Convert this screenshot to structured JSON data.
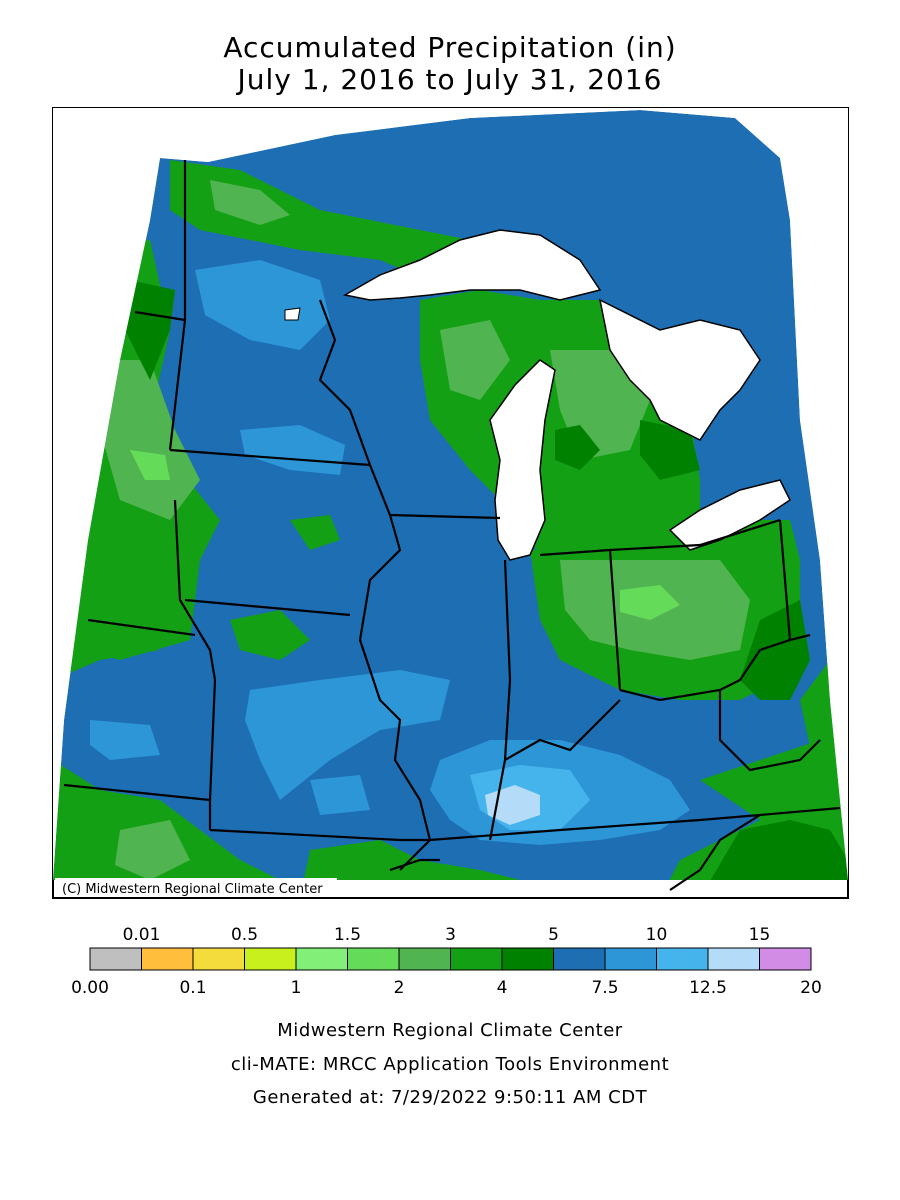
{
  "title": {
    "line1": "Accumulated Precipitation (in)",
    "line2": "July 1, 2016 to July 31, 2016"
  },
  "map": {
    "copyright": "(C) Midwestern Regional Climate Center"
  },
  "legend": {
    "top_labels": [
      "0.01",
      "0.5",
      "1.5",
      "3",
      "5",
      "10",
      "15"
    ],
    "bottom_labels": [
      "0.00",
      "0.1",
      "1",
      "2",
      "4",
      "7.5",
      "12.5",
      "20"
    ],
    "colors": [
      "#bfbfbf",
      "#ffbf3c",
      "#f4dc3c",
      "#c8f01c",
      "#82f078",
      "#64dc5a",
      "#50b450",
      "#14a014",
      "#008200",
      "#1e6eb4",
      "#2d96d7",
      "#46b4ec",
      "#b4dcf8",
      "#d28ce6"
    ]
  },
  "credits": {
    "line1": "Midwestern Regional Climate Center",
    "line2": "cli-MATE: MRCC Application Tools Environment",
    "line3": "Generated at: 7/29/2022 9:50:11 AM CDT"
  }
}
